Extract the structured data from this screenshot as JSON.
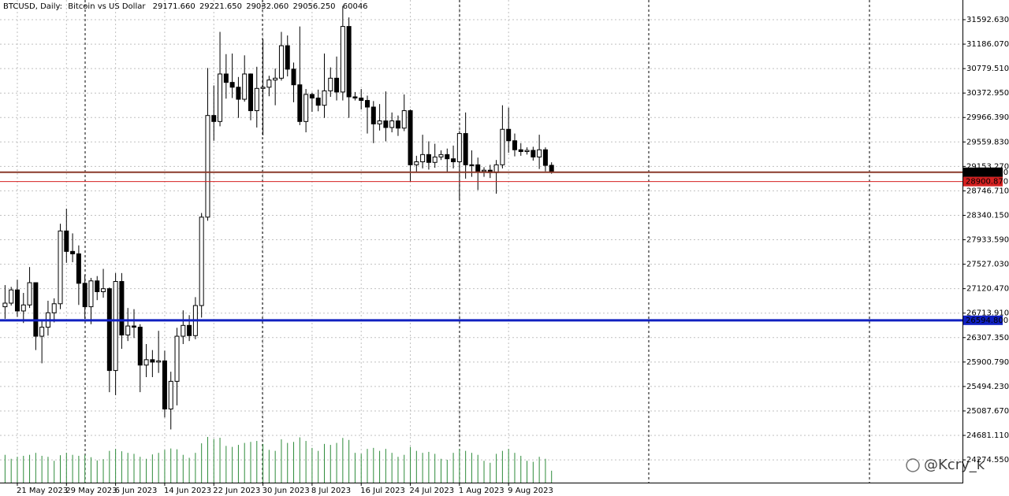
{
  "chart_data": {
    "type": "candlestick",
    "info": {
      "symbol": "BTCUSD, Daily:",
      "description": "Bitcoin vs US Dollar",
      "ohlc": [
        "29171.660",
        "29221.650",
        "29032.060",
        "29056.250"
      ],
      "volume": "60046"
    },
    "watermark": "@Kcry_k",
    "categories": [
      null,
      null,
      "21 May 2023",
      null,
      null,
      null,
      null,
      null,
      null,
      null,
      "29 May 2023",
      null,
      null,
      null,
      null,
      null,
      null,
      null,
      "6 Jun 2023",
      null,
      null,
      null,
      null,
      null,
      null,
      null,
      "14 Jun 2023",
      null,
      null,
      null,
      null,
      null,
      null,
      null,
      "22 Jun 2023",
      null,
      null,
      null,
      null,
      null,
      null,
      null,
      "30 Jun 2023",
      null,
      null,
      null,
      null,
      null,
      null,
      null,
      "8 Jul 2023",
      null,
      null,
      null,
      null,
      null,
      null,
      null,
      "16 Jul 2023",
      null,
      null,
      null,
      null,
      null,
      null,
      null,
      "24 Jul 2023",
      null,
      null,
      null,
      null,
      null,
      null,
      null,
      "1 Aug 2023",
      null,
      null,
      null,
      null,
      null,
      null,
      null,
      "9 Aug 2023",
      null,
      null,
      null,
      null,
      null,
      null,
      null
    ],
    "open": [
      26820,
      26880,
      27100,
      26750,
      26850,
      27220,
      26330,
      26480,
      26720,
      26870,
      28080,
      27740,
      27700,
      27210,
      26820,
      27250,
      27070,
      27120,
      25760,
      27240,
      26350,
      26500,
      26480,
      25850,
      25940,
      25900,
      25920,
      25120,
      25580,
      26330,
      26510,
      26340,
      26840,
      28310,
      30000,
      29900,
      30690,
      30550,
      30470,
      30270,
      30690,
      30080,
      30450,
      30470,
      30590,
      30620,
      31160,
      30770,
      30510,
      29900,
      30350,
      30290,
      30170,
      30410,
      30620,
      30390,
      31480,
      30310,
      30290,
      30250,
      30140,
      29860,
      29910,
      29800,
      29910,
      29790,
      30080,
      29180,
      29230,
      29350,
      29220,
      29310,
      29350,
      29280,
      29230,
      29700,
      29180,
      29180,
      29070,
      29090,
      29050,
      29180,
      29770,
      29580,
      29430,
      29400,
      29420,
      29310,
      29430,
      29171.66
    ],
    "high": [
      27180,
      27150,
      27270,
      27050,
      27480,
      27220,
      26600,
      26920,
      26960,
      28200,
      28450,
      28040,
      27840,
      27350,
      27300,
      27330,
      27450,
      27140,
      27380,
      27380,
      26800,
      26780,
      26530,
      26200,
      26100,
      26420,
      26090,
      25740,
      26470,
      26760,
      26680,
      26980,
      28380,
      30790,
      30500,
      31390,
      31020,
      31030,
      30640,
      31000,
      30700,
      30810,
      31270,
      30660,
      30780,
      31390,
      31330,
      30880,
      31480,
      30440,
      30380,
      30430,
      31030,
      30800,
      30980,
      31820,
      31630,
      30390,
      30440,
      30330,
      30240,
      30190,
      30400,
      30050,
      30000,
      30350,
      30100,
      29330,
      29680,
      29570,
      29530,
      29420,
      29450,
      29500,
      29740,
      30050,
      29420,
      29300,
      29140,
      29180,
      29260,
      30170,
      30130,
      29700,
      29540,
      29470,
      29480,
      29680,
      29470,
      29221.65
    ],
    "low": [
      26620,
      26840,
      26650,
      26550,
      26800,
      26100,
      25880,
      26340,
      26560,
      26780,
      27550,
      27560,
      26850,
      26620,
      26530,
      26930,
      26970,
      25400,
      25350,
      26120,
      26250,
      26300,
      25400,
      25650,
      25650,
      25720,
      24980,
      24780,
      25180,
      26200,
      26250,
      26280,
      26640,
      28250,
      29580,
      29820,
      30280,
      30290,
      29960,
      30230,
      29920,
      29800,
      29670,
      30320,
      30170,
      30580,
      30650,
      30220,
      29840,
      29720,
      30060,
      30070,
      29960,
      30310,
      30250,
      30250,
      29960,
      30250,
      30100,
      29700,
      29540,
      29750,
      29570,
      29720,
      29660,
      29740,
      28900,
      29060,
      29120,
      29100,
      29130,
      29260,
      29050,
      29120,
      28590,
      28950,
      28980,
      28760,
      28980,
      28960,
      28700,
      29120,
      29380,
      29320,
      29330,
      29350,
      29250,
      29110,
      29070,
      29032.06
    ],
    "close": [
      26880,
      27100,
      26750,
      26850,
      27220,
      26330,
      26480,
      26720,
      26870,
      28080,
      27740,
      27700,
      27210,
      26820,
      27250,
      27070,
      27120,
      25760,
      27240,
      26350,
      26500,
      26480,
      25850,
      25940,
      25900,
      25920,
      25120,
      25580,
      26330,
      26510,
      26340,
      26840,
      28310,
      30000,
      29900,
      30690,
      30550,
      30470,
      30270,
      30690,
      30080,
      30450,
      30470,
      30590,
      30620,
      31160,
      30770,
      30510,
      29900,
      30350,
      30290,
      30170,
      30410,
      30620,
      30390,
      31480,
      30310,
      30290,
      30250,
      30140,
      29860,
      29910,
      29800,
      29910,
      29790,
      30080,
      29180,
      29230,
      29350,
      29220,
      29310,
      29350,
      29280,
      29230,
      29700,
      29180,
      29180,
      29070,
      29090,
      29050,
      29180,
      29770,
      29580,
      29430,
      29400,
      29420,
      29310,
      29430,
      29170,
      29056.25
    ],
    "volume": [
      140000,
      120000,
      130000,
      135000,
      140000,
      150000,
      135000,
      130000,
      110000,
      138000,
      150000,
      140000,
      135000,
      140000,
      128000,
      112000,
      118000,
      160000,
      170000,
      158000,
      150000,
      145000,
      130000,
      120000,
      142000,
      150000,
      165000,
      172000,
      168000,
      140000,
      125000,
      150000,
      198000,
      230000,
      220000,
      226000,
      185000,
      180000,
      190000,
      200000,
      205000,
      210000,
      195000,
      165000,
      160000,
      218000,
      200000,
      205000,
      228000,
      210000,
      175000,
      160000,
      195000,
      190000,
      200000,
      225000,
      215000,
      150000,
      145000,
      170000,
      175000,
      160000,
      170000,
      150000,
      130000,
      140000,
      180000,
      160000,
      150000,
      155000,
      145000,
      120000,
      115000,
      150000,
      170000,
      160000,
      150000,
      140000,
      110000,
      100000,
      145000,
      160000,
      170000,
      150000,
      135000,
      110000,
      105000,
      130000,
      120000,
      60046
    ],
    "bull_color": "#ffffff",
    "bear_color": "#000000",
    "volume_color": "#2e8b3a",
    "grid_color": "#c0c0c0",
    "grid": true,
    "ylim": [
      23896,
      31920
    ],
    "yticks": [
      {
        "value": 31592.63,
        "label": "31592.630"
      },
      {
        "value": 31186.07,
        "label": "31186.070"
      },
      {
        "value": 30779.51,
        "label": "30779.510"
      },
      {
        "value": 30372.95,
        "label": "30372.950"
      },
      {
        "value": 29966.39,
        "label": "29966.390"
      },
      {
        "value": 29559.83,
        "label": "29559.830"
      },
      {
        "value": 29153.27,
        "label": "29153.270"
      },
      {
        "value": 28746.71,
        "label": "28746.710"
      },
      {
        "value": 28340.15,
        "label": "28340.150"
      },
      {
        "value": 27933.59,
        "label": "27933.590"
      },
      {
        "value": 27527.03,
        "label": "27527.030"
      },
      {
        "value": 27120.47,
        "label": "27120.470"
      },
      {
        "value": 26713.91,
        "label": "26713.910"
      },
      {
        "value": 26307.35,
        "label": "26307.350"
      },
      {
        "value": 25900.79,
        "label": "25900.790"
      },
      {
        "value": 25494.23,
        "label": "25494.230"
      },
      {
        "value": 25087.67,
        "label": "25087.670"
      },
      {
        "value": 24681.11,
        "label": "24681.110"
      },
      {
        "value": 24274.55,
        "label": "24274.550"
      }
    ],
    "levels": [
      {
        "value": 29056.25,
        "label": "29056.250",
        "color": "#000000",
        "line_color": "#8a3a2a",
        "width": 2
      },
      {
        "value": 28900.87,
        "label": "28900.870",
        "color": "#d42020",
        "line_color": "#d42020",
        "width": 1
      },
      {
        "value": 26594.8,
        "label": "26594.800",
        "color": "#1020c0",
        "line_color": "#1020c0",
        "width": 3
      }
    ]
  }
}
